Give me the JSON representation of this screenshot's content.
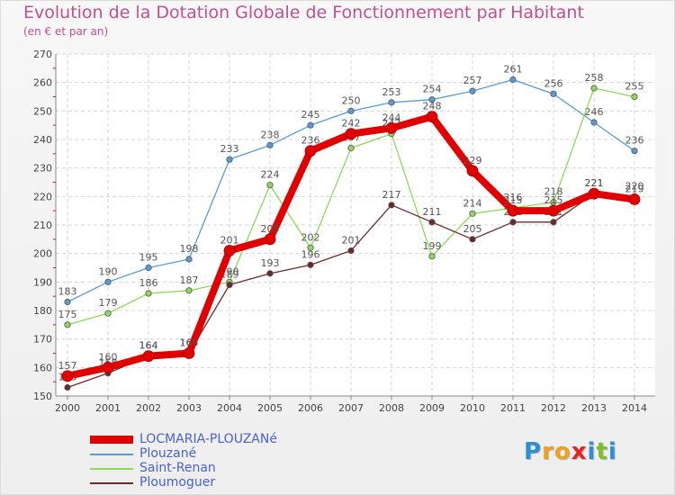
{
  "title": "Evolution de la Dotation Globale de Fonctionnement par Habitant",
  "subtitle": "(en € et par an)",
  "brand": {
    "letters": [
      "P",
      "r",
      "o",
      "x",
      "i",
      "t",
      "i"
    ],
    "colors": [
      "#2e8fd6",
      "#f0a020",
      "#f0a020",
      "#e52521",
      "#2e8fd6",
      "#7bbf2a",
      "#2e8fd6"
    ]
  },
  "chart_data": {
    "type": "line",
    "x": [
      "2000",
      "2001",
      "2002",
      "2003",
      "2004",
      "2005",
      "2006",
      "2007",
      "2008",
      "2009",
      "2010",
      "2011",
      "2012",
      "2013",
      "2014"
    ],
    "ylim": [
      150,
      270
    ],
    "yticks": [
      "150",
      "160",
      "170",
      "180",
      "190",
      "200",
      "210",
      "220",
      "230",
      "240",
      "250",
      "260",
      "270"
    ],
    "grid": true,
    "legend_position": "bottom-left",
    "series": [
      {
        "name": "LOCMARIA-PLOUZANé",
        "color": "#e00000",
        "thick": true,
        "values": [
          157,
          160,
          164,
          165,
          201,
          205,
          236,
          242,
          244,
          248,
          229,
          215,
          215,
          221,
          219
        ]
      },
      {
        "name": "Plouzané",
        "color": "#5b9bd5",
        "thick": false,
        "values": [
          183,
          190,
          195,
          198,
          233,
          238,
          245,
          250,
          253,
          254,
          257,
          261,
          256,
          246,
          236
        ]
      },
      {
        "name": "Saint-Renan",
        "color": "#8ed85a",
        "thick": false,
        "values": [
          175,
          179,
          186,
          187,
          190,
          224,
          202,
          237,
          242,
          199,
          214,
          216,
          218,
          258,
          255
        ]
      },
      {
        "name": "Ploumoguer",
        "color": "#6b2a2a",
        "thick": false,
        "values": [
          153,
          158,
          164,
          165,
          189,
          193,
          196,
          201,
          217,
          211,
          205,
          211,
          211,
          221,
          220
        ]
      }
    ]
  }
}
